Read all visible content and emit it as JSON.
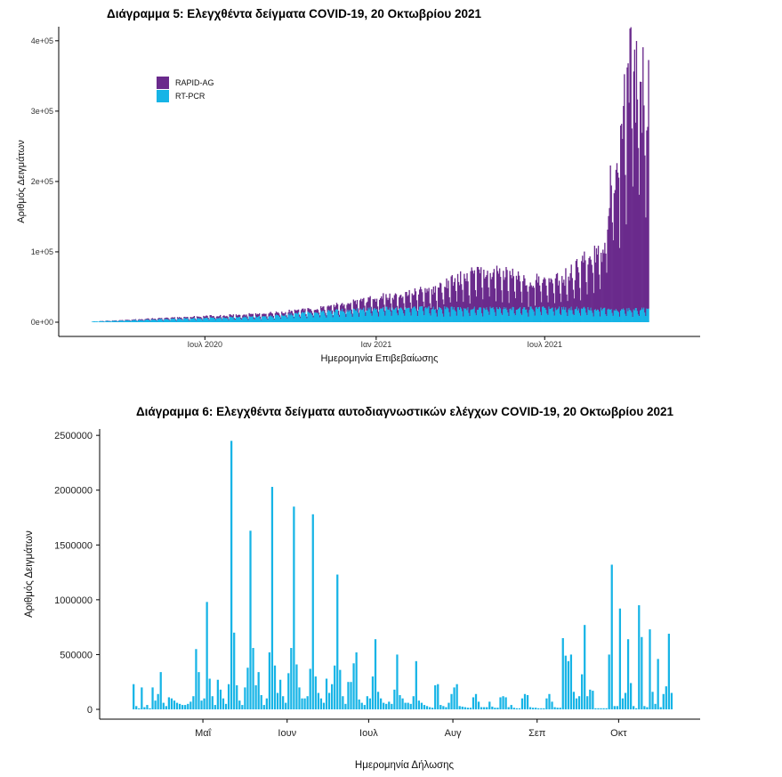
{
  "chart_data": [
    {
      "type": "bar",
      "title": "Διάγραμμα 5: Ελεγχθέντα δείγματα COVID-19, 20 Οκτωβρίου 2021",
      "xlabel": "Ημερομηνία Επιβεβαίωσης",
      "ylabel": "Αριθμός Δειγμάτων",
      "stacked": true,
      "x_start": "2020-03-01",
      "x_end": "2021-10-20",
      "xlim": [
        "2020-01-26",
        "2021-12-15"
      ],
      "ylim": [
        0,
        420000
      ],
      "y_ticks": [
        0,
        100000,
        200000,
        300000,
        400000
      ],
      "y_tick_labels": [
        "0e+00",
        "1e+05",
        "2e+05",
        "3e+05",
        "4e+05"
      ],
      "x_ticks": [
        "2020-07-01",
        "2021-01-01",
        "2021-07-01"
      ],
      "x_tick_labels": [
        "Ιουλ 2020",
        "Ιαν 2021",
        "Ιουλ 2021"
      ],
      "legend_position": "top-left",
      "series": [
        {
          "name": "RAPID-AG",
          "color": "#6a2a8c",
          "breakpoints": [
            [
              "2020-03-01",
              0
            ],
            [
              "2020-11-01",
              5000
            ],
            [
              "2020-12-01",
              10000
            ],
            [
              "2021-01-01",
              15000
            ],
            [
              "2021-03-01",
              25000
            ],
            [
              "2021-04-15",
              50000
            ],
            [
              "2021-06-01",
              45000
            ],
            [
              "2021-07-01",
              35000
            ],
            [
              "2021-07-31",
              50000
            ],
            [
              "2021-08-15",
              75000
            ],
            [
              "2021-09-01",
              80000
            ],
            [
              "2021-09-12",
              200000
            ],
            [
              "2021-09-30",
              330000
            ],
            [
              "2021-10-20",
              330000
            ]
          ]
        },
        {
          "name": "RT-PCR",
          "color": "#16b4e6",
          "breakpoints": [
            [
              "2020-03-01",
              1000
            ],
            [
              "2020-06-01",
              5000
            ],
            [
              "2020-09-01",
              8000
            ],
            [
              "2020-11-01",
              15000
            ],
            [
              "2021-01-01",
              20000
            ],
            [
              "2021-04-01",
              20000
            ],
            [
              "2021-07-01",
              20000
            ],
            [
              "2021-10-20",
              18000
            ]
          ]
        }
      ]
    },
    {
      "type": "bar",
      "title": "Διάγραμμα 6: Ελεγχθέντα δείγματα αυτοδιαγνωστικών ελέγχων COVID-19, 20 Οκτωβρίου 2021",
      "xlabel": "Ημερομηνία Δήλωσης",
      "ylabel": "Αριθμός Δειγμάτων",
      "x_start": "2021-04-05",
      "xlim": [
        "2021-03-24",
        "2021-10-31"
      ],
      "ylim": [
        0,
        2550000
      ],
      "y_ticks": [
        0,
        500000,
        1000000,
        1500000,
        2000000,
        2500000
      ],
      "y_tick_labels": [
        "0",
        "500000",
        "1000000",
        "1500000",
        "2000000",
        "2500000"
      ],
      "x_ticks": [
        "2021-05-01",
        "2021-06-01",
        "2021-07-01",
        "2021-08-01",
        "2021-09-01",
        "2021-10-01"
      ],
      "x_tick_labels": [
        "Μαΐ",
        "Ιουν",
        "Ιουλ",
        "Αυγ",
        "Σεπ",
        "Οκτ"
      ],
      "color": "#16b4e6",
      "values": [
        230000,
        30000,
        10000,
        200000,
        20000,
        40000,
        10000,
        200000,
        80000,
        140000,
        340000,
        60000,
        30000,
        110000,
        100000,
        80000,
        60000,
        50000,
        40000,
        40000,
        50000,
        70000,
        120000,
        550000,
        340000,
        80000,
        100000,
        980000,
        280000,
        120000,
        40000,
        270000,
        180000,
        100000,
        50000,
        230000,
        2450000,
        700000,
        220000,
        80000,
        40000,
        200000,
        380000,
        1630000,
        560000,
        220000,
        340000,
        130000,
        40000,
        100000,
        520000,
        2030000,
        400000,
        150000,
        270000,
        120000,
        60000,
        330000,
        560000,
        1850000,
        410000,
        200000,
        100000,
        100000,
        120000,
        370000,
        1780000,
        300000,
        150000,
        100000,
        60000,
        280000,
        150000,
        230000,
        400000,
        1230000,
        360000,
        120000,
        50000,
        250000,
        250000,
        420000,
        520000,
        90000,
        60000,
        40000,
        120000,
        100000,
        300000,
        640000,
        160000,
        100000,
        60000,
        50000,
        70000,
        50000,
        180000,
        500000,
        130000,
        100000,
        60000,
        60000,
        50000,
        120000,
        440000,
        80000,
        60000,
        40000,
        30000,
        20000,
        15000,
        220000,
        230000,
        40000,
        30000,
        20000,
        60000,
        140000,
        200000,
        230000,
        30000,
        25000,
        20000,
        15000,
        15000,
        110000,
        140000,
        70000,
        20000,
        20000,
        20000,
        70000,
        25000,
        15000,
        15000,
        110000,
        120000,
        110000,
        20000,
        40000,
        15000,
        10000,
        10000,
        100000,
        140000,
        130000,
        20000,
        15000,
        15000,
        10000,
        10000,
        10000,
        100000,
        140000,
        70000,
        20000,
        15000,
        15000,
        650000,
        490000,
        440000,
        500000,
        160000,
        100000,
        120000,
        320000,
        770000,
        120000,
        180000,
        170000,
        10000,
        10000,
        10000,
        10000,
        10000,
        500000,
        1320000,
        30000,
        30000,
        920000,
        100000,
        150000,
        640000,
        240000,
        30000,
        10000,
        950000,
        660000,
        30000,
        20000,
        730000,
        160000,
        50000,
        460000,
        20000,
        140000,
        210000,
        690000,
        150000
      ]
    }
  ]
}
